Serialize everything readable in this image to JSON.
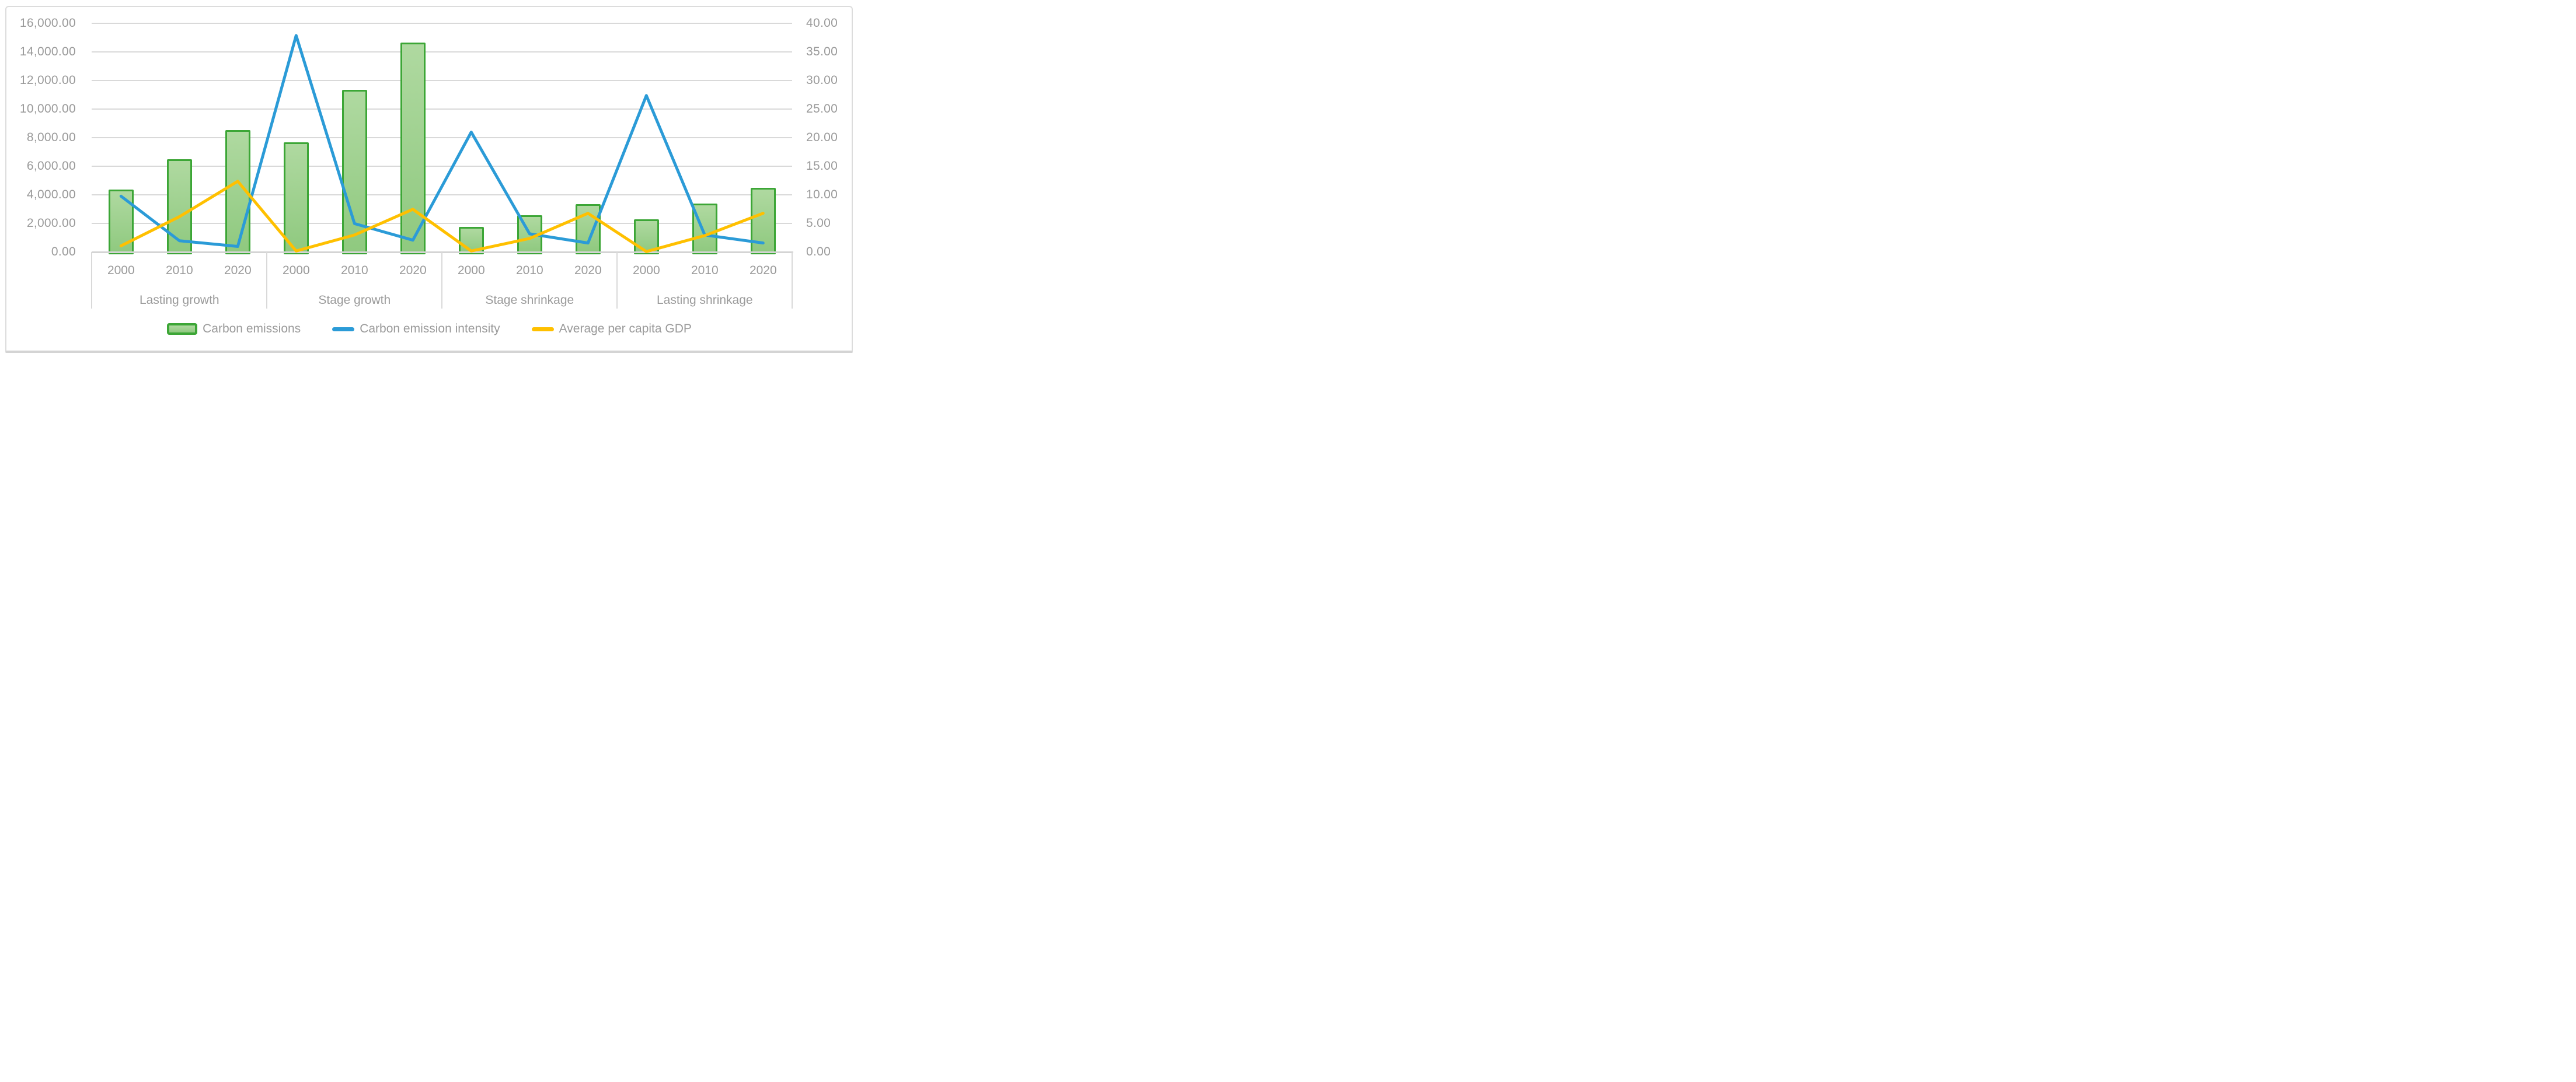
{
  "chart_data": {
    "type": "bar",
    "subtype": "combo-bar-line-dual-axis",
    "title": "",
    "groups": [
      "Lasting growth",
      "Stage growth",
      "Stage shrinkage",
      "Lasting shrinkage"
    ],
    "years_per_group": [
      "2000",
      "2010",
      "2020"
    ],
    "categories": [
      "2000",
      "2010",
      "2020",
      "2000",
      "2010",
      "2020",
      "2000",
      "2010",
      "2020",
      "2000",
      "2010",
      "2020"
    ],
    "series": [
      {
        "name": "Carbon emissions",
        "type": "bar",
        "axis": "left",
        "border_color": "#3CA636",
        "fill_top": "#AFD9A0",
        "fill_bottom": "#8FC97F",
        "values": [
          4400,
          6500,
          8550,
          7700,
          11370,
          14650,
          1750,
          2600,
          3350,
          2300,
          3400,
          4500
        ]
      },
      {
        "name": "Carbon emission intensity",
        "type": "line",
        "axis": "right",
        "color": "#2B9BD7",
        "values": [
          9.8,
          2.0,
          1.0,
          37.9,
          5.0,
          2.1,
          21.0,
          3.2,
          1.6,
          27.4,
          3.0,
          1.6
        ]
      },
      {
        "name": "Average per capita GDP",
        "type": "line",
        "axis": "right",
        "color": "#FFC000",
        "values": [
          1.1,
          6.2,
          12.4,
          0.2,
          3.0,
          7.5,
          0.2,
          2.4,
          6.8,
          0.1,
          2.9,
          6.8
        ]
      }
    ],
    "left_axis": {
      "min": 0,
      "max": 16000,
      "step": 2000,
      "ticks": [
        "16,000.00",
        "14,000.00",
        "12,000.00",
        "10,000.00",
        "8,000.00",
        "6,000.00",
        "4,000.00",
        "2,000.00",
        "0.00"
      ]
    },
    "right_axis": {
      "min": 0,
      "max": 40,
      "step": 5,
      "ticks": [
        "40.00",
        "35.00",
        "30.00",
        "25.00",
        "20.00",
        "15.00",
        "10.00",
        "5.00",
        "0.00"
      ]
    },
    "grid": true,
    "legend_position": "bottom"
  },
  "colors": {
    "gridline": "#D9D9D9",
    "axis_line": "#D4D4D4",
    "frame_border": "#DCDCDC",
    "tick_text": "#9A9A9A",
    "background": "#FFFFFF"
  }
}
